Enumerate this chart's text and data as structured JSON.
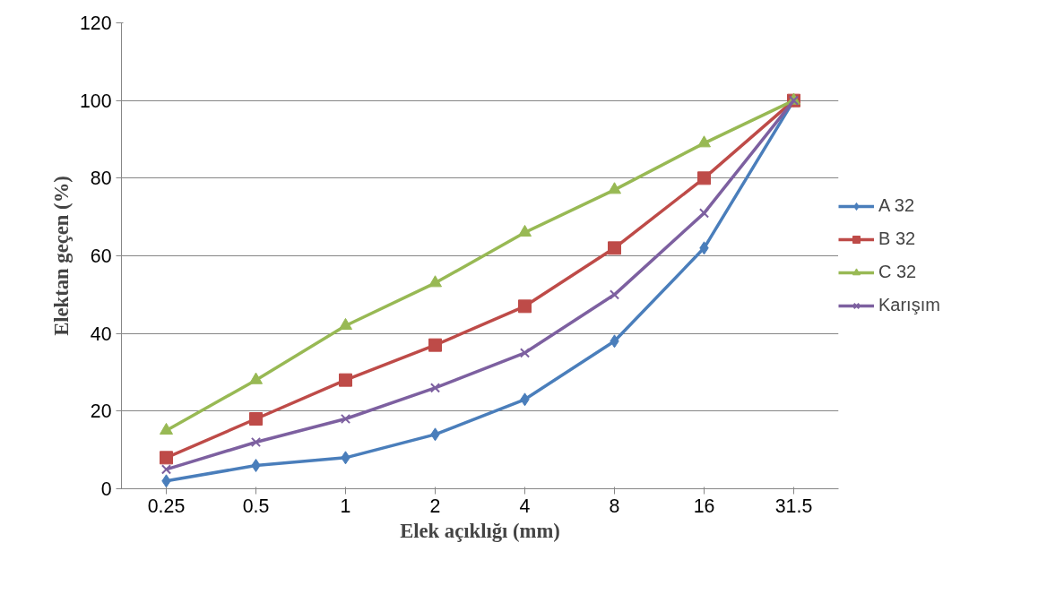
{
  "chart_data": {
    "type": "line",
    "xlabel": "Elek açıklığı (mm)",
    "ylabel": "Elektan geçen (%)",
    "categories": [
      "0.25",
      "0.5",
      "1",
      "2",
      "4",
      "8",
      "16",
      "31.5"
    ],
    "ylim": [
      0,
      120
    ],
    "yticks": [
      0,
      20,
      40,
      60,
      80,
      100,
      120
    ],
    "grid": "y",
    "legend": "right",
    "series": [
      {
        "name": "A 32",
        "color": "#4a7ebb",
        "marker": "diamond",
        "values": [
          2,
          6,
          8,
          14,
          23,
          38,
          62,
          100
        ]
      },
      {
        "name": "B 32",
        "color": "#be4b48",
        "marker": "square",
        "values": [
          8,
          18,
          28,
          37,
          47,
          62,
          80,
          100
        ]
      },
      {
        "name": "C 32",
        "color": "#98b954",
        "marker": "triangle",
        "values": [
          15,
          28,
          42,
          53,
          66,
          77,
          89,
          100
        ]
      },
      {
        "name": "Karışım",
        "color": "#7d60a0",
        "marker": "cross",
        "values": [
          5,
          12,
          18,
          26,
          35,
          50,
          71,
          100
        ]
      }
    ]
  }
}
